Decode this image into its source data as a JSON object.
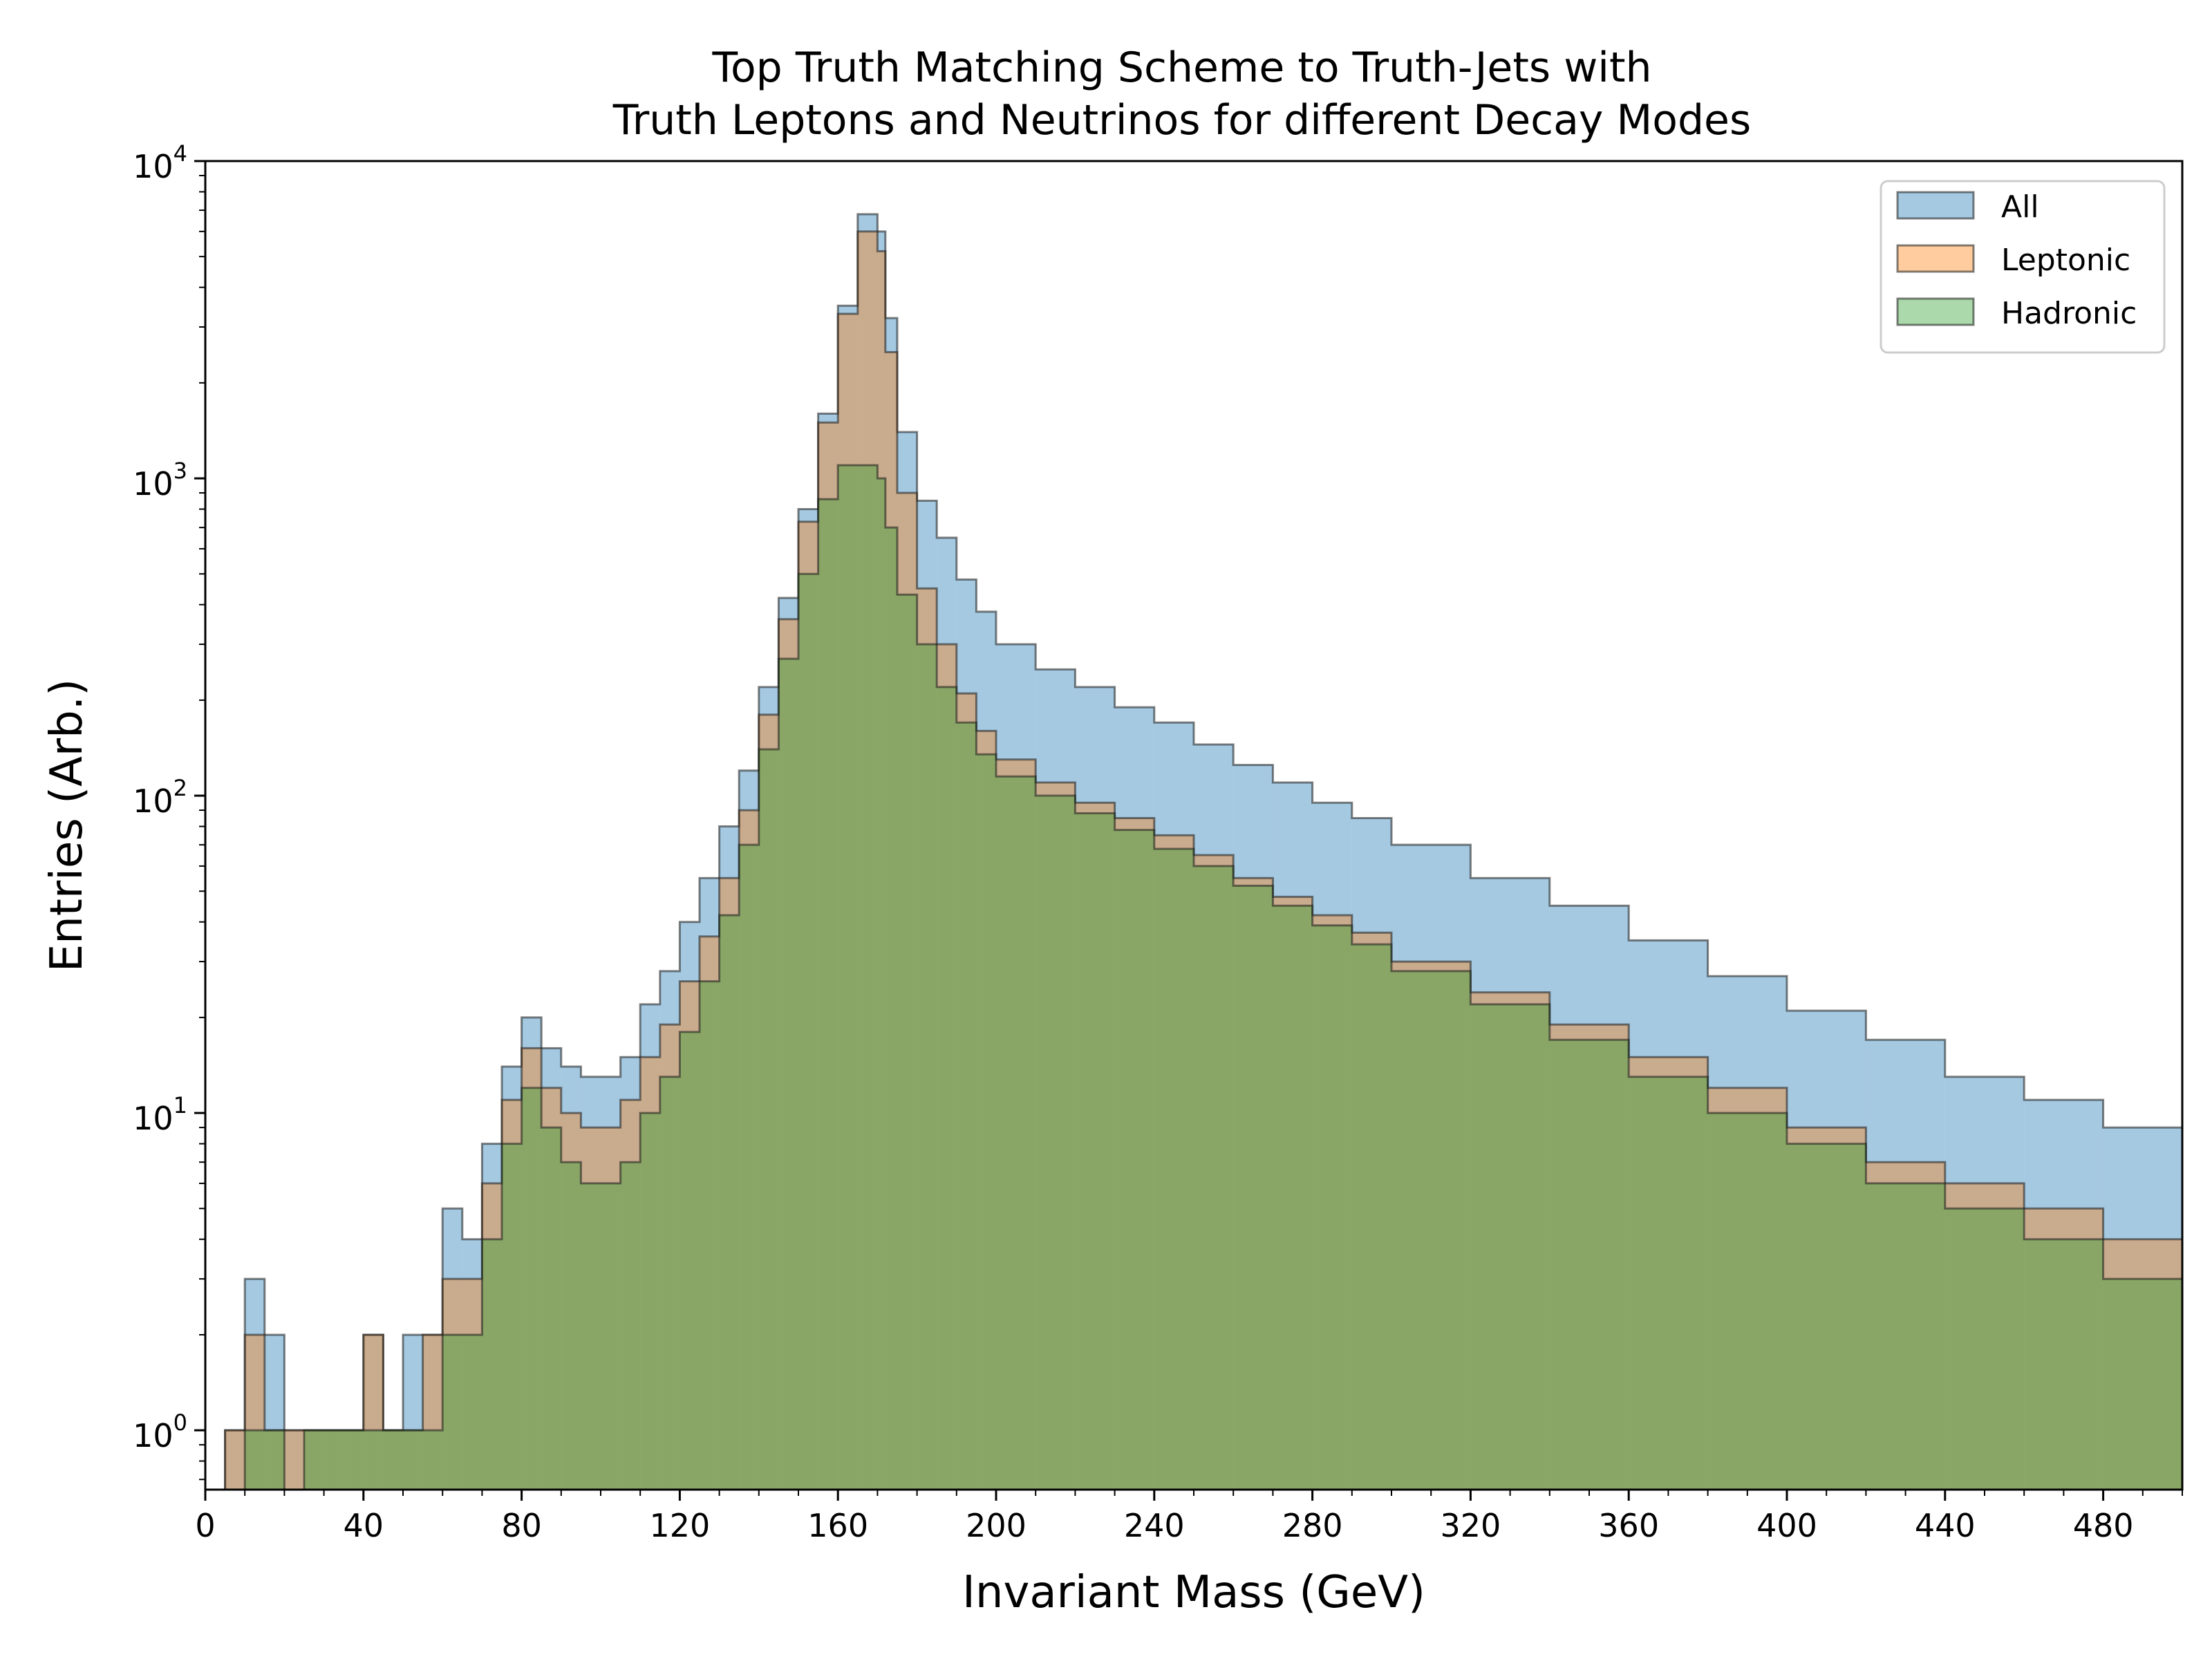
{
  "chart_data": {
    "type": "histogram",
    "title": [
      "Top Truth Matching Scheme to Truth-Jets with",
      "Truth Leptons and Neutrinos for different Decay Modes"
    ],
    "xlabel": "Invariant Mass (GeV)",
    "ylabel": "Entries (Arb.)",
    "xlim": [
      0,
      500
    ],
    "ylim": [
      0.65,
      10000
    ],
    "yscale": "log",
    "grid": false,
    "legend_position": "top-right",
    "x_ticks": [
      {
        "value": 0,
        "label": "0"
      },
      {
        "value": 40,
        "label": "40"
      },
      {
        "value": 80,
        "label": "80"
      },
      {
        "value": 120,
        "label": "120"
      },
      {
        "value": 160,
        "label": "160"
      },
      {
        "value": 200,
        "label": "200"
      },
      {
        "value": 240,
        "label": "240"
      },
      {
        "value": 280,
        "label": "280"
      },
      {
        "value": 320,
        "label": "320"
      },
      {
        "value": 360,
        "label": "360"
      },
      {
        "value": 400,
        "label": "400"
      },
      {
        "value": 440,
        "label": "440"
      },
      {
        "value": 480,
        "label": "480"
      }
    ],
    "y_ticks": [
      {
        "value": 1,
        "base": "10",
        "exp": "0"
      },
      {
        "value": 10,
        "base": "10",
        "exp": "1"
      },
      {
        "value": 100,
        "base": "10",
        "exp": "2"
      },
      {
        "value": 1000,
        "base": "10",
        "exp": "3"
      },
      {
        "value": 10000,
        "base": "10",
        "exp": "4"
      }
    ],
    "bins": {
      "x": [
        0,
        5,
        10,
        15,
        20,
        25,
        30,
        35,
        40,
        45,
        50,
        55,
        60,
        65,
        70,
        75,
        80,
        85,
        90,
        95,
        100,
        105,
        110,
        115,
        120,
        125,
        130,
        135,
        140,
        145,
        150,
        155,
        160,
        165,
        170,
        172,
        175,
        180,
        185,
        190,
        195,
        200,
        210,
        220,
        230,
        240,
        250,
        260,
        270,
        280,
        290,
        300,
        320,
        340,
        360,
        380,
        400,
        420,
        440,
        460,
        480,
        500
      ]
    },
    "series": [
      {
        "name": "All",
        "color": "#1f77b4",
        "y": [
          0.65,
          1,
          3,
          2,
          1,
          1,
          1,
          1,
          2,
          1,
          2,
          2,
          5,
          4,
          8,
          14,
          20,
          16,
          14,
          13,
          13,
          15,
          22,
          28,
          40,
          55,
          80,
          120,
          220,
          420,
          800,
          1600,
          3500,
          6800,
          6000,
          3200,
          1400,
          850,
          650,
          480,
          380,
          300,
          250,
          220,
          190,
          170,
          145,
          125,
          110,
          95,
          85,
          70,
          55,
          45,
          35,
          27,
          21,
          17,
          13,
          11,
          9,
          9
        ]
      },
      {
        "name": "Leptonic",
        "color": "#ff7f0e",
        "y": [
          0.65,
          1,
          2,
          1,
          1,
          1,
          1,
          1,
          2,
          1,
          1,
          2,
          3,
          3,
          6,
          11,
          16,
          12,
          10,
          9,
          9,
          11,
          15,
          19,
          26,
          36,
          55,
          90,
          180,
          360,
          730,
          1500,
          3300,
          6000,
          5200,
          2500,
          900,
          450,
          300,
          210,
          160,
          130,
          110,
          95,
          85,
          75,
          65,
          55,
          48,
          42,
          37,
          30,
          24,
          19,
          15,
          12,
          9,
          7,
          6,
          5,
          4,
          4
        ]
      },
      {
        "name": "Hadronic",
        "color": "#2ca02c",
        "y": [
          0.65,
          0.65,
          1,
          1,
          0.65,
          1,
          1,
          1,
          1,
          1,
          1,
          1,
          2,
          2,
          4,
          8,
          12,
          9,
          7,
          6,
          6,
          7,
          10,
          13,
          18,
          26,
          42,
          70,
          140,
          270,
          500,
          860,
          1100,
          1100,
          1000,
          700,
          430,
          300,
          220,
          170,
          135,
          115,
          100,
          88,
          78,
          68,
          60,
          52,
          45,
          39,
          34,
          28,
          22,
          17,
          13,
          10,
          8,
          6,
          5,
          4,
          3,
          3
        ]
      }
    ]
  }
}
